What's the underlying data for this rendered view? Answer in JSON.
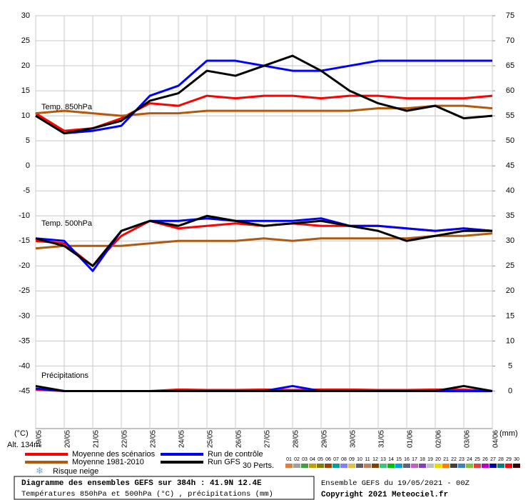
{
  "chart_data": {
    "type": "line",
    "title": "Diagramme des ensembles GEFS sur 384h : 41.9N 12.4E",
    "subtitle": "Températures 850hPa et 500hPa (°C) , précipitations (mm)",
    "run_info": "Ensemble GEFS du 19/05/2021 - 00Z",
    "copyright": "Copyright 2021 Meteociel.fr",
    "altitude": "Alt. 134m",
    "y_label": "(°C)",
    "y2_label": "(mm)",
    "annotations": [
      "Temp. 850hPa",
      "Temp. 500hPa",
      "Précipitations"
    ],
    "snow_label": "Risque neige",
    "perturbations_label": "30 Perts.",
    "perturbations": [
      "01",
      "02",
      "03",
      "04",
      "05",
      "06",
      "07",
      "08",
      "09",
      "10",
      "11",
      "12",
      "13",
      "14",
      "15",
      "16",
      "17",
      "18",
      "19",
      "20",
      "21",
      "22",
      "23",
      "24",
      "25",
      "26",
      "27",
      "28",
      "29",
      "30"
    ],
    "perturbation_colors": [
      "#e08040",
      "#a0a0a0",
      "#40a040",
      "#c0a000",
      "#808000",
      "#a04000",
      "#00a0a0",
      "#8080ff",
      "#e0c040",
      "#606060",
      "#c08060",
      "#804000",
      "#40c080",
      "#00c000",
      "#00a0e0",
      "#606080",
      "#c060c0",
      "#8040c0",
      "#c0c0c0",
      "#e0e000",
      "#ff8000",
      "#404040",
      "#4080c0",
      "#80c040",
      "#e04040",
      "#c000c0",
      "#0000a0",
      "#008080",
      "#ff0000",
      "#400000"
    ],
    "x": [
      0,
      1,
      2,
      3,
      4,
      5,
      6,
      7,
      8,
      9,
      10,
      11,
      12,
      13,
      14,
      15,
      16
    ],
    "xlim": [
      0,
      16
    ],
    "xticks": [
      {
        "value": 0,
        "label": "19/05"
      },
      {
        "value": 1,
        "label": "20/05"
      },
      {
        "value": 2,
        "label": "21/05"
      },
      {
        "value": 3,
        "label": "22/05"
      },
      {
        "value": 4,
        "label": "23/05"
      },
      {
        "value": 5,
        "label": "24/05"
      },
      {
        "value": 6,
        "label": "25/05"
      },
      {
        "value": 7,
        "label": "26/05"
      },
      {
        "value": 8,
        "label": "27/05"
      },
      {
        "value": 9,
        "label": "28/05"
      },
      {
        "value": 10,
        "label": "29/05"
      },
      {
        "value": 11,
        "label": "30/05"
      },
      {
        "value": 12,
        "label": "31/05"
      },
      {
        "value": 13,
        "label": "01/06"
      },
      {
        "value": 14,
        "label": "02/06"
      },
      {
        "value": 15,
        "label": "03/06"
      },
      {
        "value": 16,
        "label": "04/06"
      }
    ],
    "ylim": [
      -52.5,
      30
    ],
    "yticks": [
      30,
      25,
      20,
      15,
      10,
      5,
      0,
      -5,
      -10,
      -15,
      -20,
      -25,
      -30,
      -35,
      -40,
      -45
    ],
    "y2lim": [
      -7.5,
      75
    ],
    "y2ticks": [
      75,
      70,
      65,
      60,
      55,
      50,
      45,
      40,
      35,
      30,
      25,
      20,
      15,
      10,
      5,
      0
    ],
    "grid": true,
    "series": [
      {
        "name": "Moyenne des scénarios",
        "color": "#ff0000",
        "t850": [
          10.5,
          7,
          7.5,
          9.5,
          12.5,
          12,
          14,
          13.5,
          14,
          14,
          13.5,
          14,
          14,
          13.5,
          13.5,
          13.5,
          14
        ],
        "t500": [
          -15,
          -15.5,
          -20,
          -14,
          -11,
          -12.5,
          -12,
          -11.5,
          -12,
          -11.5,
          -12,
          -12,
          -12,
          -12.5,
          -13,
          -12.5,
          -13
        ],
        "precip": [
          0.3,
          0,
          0,
          0,
          0,
          0.3,
          0.2,
          0.2,
          0.3,
          0.2,
          0.3,
          0.3,
          0.2,
          0.2,
          0.3,
          0.3,
          0
        ]
      },
      {
        "name": "Moyenne 1981-2010",
        "color": "#b05a10",
        "t850": [
          10.5,
          11,
          10.5,
          10,
          10.5,
          10.5,
          11,
          11,
          11,
          11,
          11,
          11,
          11.5,
          11.5,
          12,
          12,
          11.5
        ],
        "t500": [
          -16.5,
          -16,
          -16,
          -16,
          -15.5,
          -15,
          -15,
          -15,
          -14.5,
          -15,
          -14.5,
          -14.5,
          -14.5,
          -14.5,
          -14,
          -14,
          -13.5
        ]
      },
      {
        "name": "Run de contrôle",
        "color": "#0000ff",
        "t850": [
          10,
          6.5,
          7,
          8,
          14,
          16,
          21,
          21,
          20,
          19,
          19,
          20,
          21,
          21,
          21,
          21,
          21
        ],
        "t500": [
          -14.5,
          -15,
          -21,
          -13,
          -11,
          -11,
          -10.5,
          -11,
          -11,
          -11,
          -10.5,
          -12,
          -12,
          -12.5,
          -13,
          -12.5,
          -13
        ],
        "precip": [
          0.5,
          0,
          0,
          0,
          0,
          0,
          0,
          0,
          0,
          1,
          0,
          0,
          0,
          0,
          0,
          0,
          0
        ]
      },
      {
        "name": "Run GFS",
        "color": "#000000",
        "t850": [
          10,
          6.5,
          7.5,
          9,
          13,
          14.5,
          19,
          18,
          20,
          22,
          19,
          15,
          12.5,
          11,
          12,
          9.5,
          10
        ],
        "t500": [
          -14.5,
          -16,
          -20,
          -13,
          -11,
          -12,
          -10,
          -11,
          -12,
          -11.5,
          -11,
          -12,
          -13,
          -15,
          -14,
          -13,
          -13
        ],
        "precip": [
          1,
          0,
          0,
          0,
          0,
          0,
          0,
          0,
          0,
          0,
          0,
          0,
          0,
          0,
          0,
          1,
          0
        ]
      }
    ]
  }
}
